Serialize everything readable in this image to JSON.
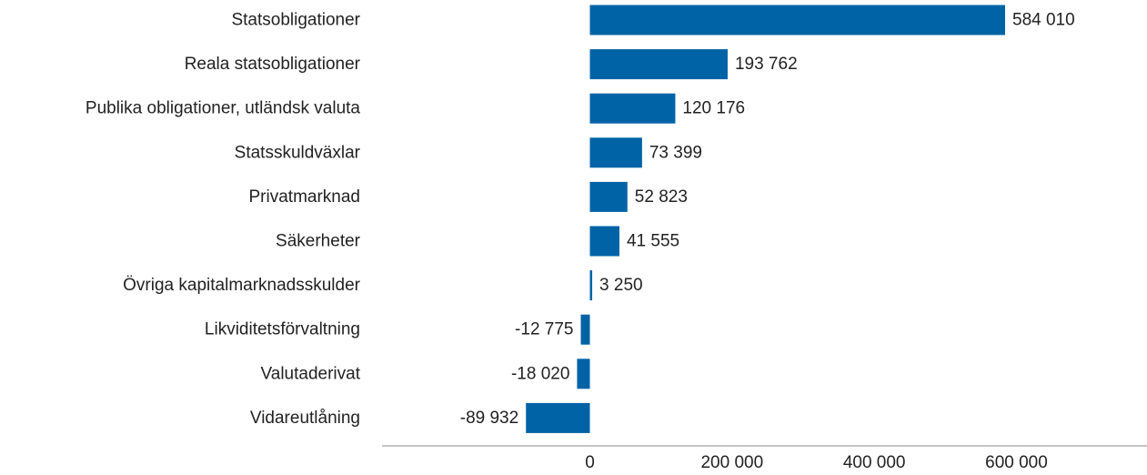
{
  "chart_data": {
    "type": "bar",
    "orientation": "horizontal",
    "categories": [
      "Statsobligationer",
      "Reala statsobligationer",
      "Publika obligationer, utländsk valuta",
      "Statsskuldväxlar",
      "Privatmarknad",
      "Säkerheter",
      "Övriga kapitalmarknadsskulder",
      "Likviditetsförvaltning",
      "Valutaderivat",
      "Vidareutlåning"
    ],
    "values": [
      584010,
      193762,
      120176,
      73399,
      52823,
      41555,
      3250,
      -12775,
      -18020,
      -89932
    ],
    "data_labels": [
      "584 010",
      "193 762",
      "120 176",
      "73 399",
      "52 823",
      "41 555",
      "3 250",
      "-12 775",
      "-18 020",
      "-89 932"
    ],
    "x_ticks": [
      0,
      200000,
      400000,
      600000
    ],
    "x_tick_labels": [
      "0",
      "200 000",
      "400 000",
      "600 000"
    ],
    "xlim": [
      -300000,
      770000
    ],
    "bar_color": "#0063A6",
    "axis_color": "#888888",
    "grid": false,
    "legend": "none"
  }
}
